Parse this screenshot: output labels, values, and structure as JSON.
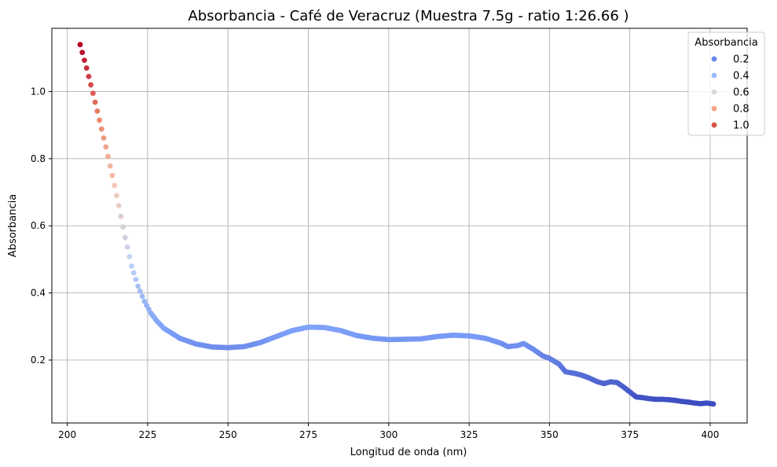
{
  "chart_data": {
    "type": "scatter",
    "title": "Absorbancia - Café de Veracruz (Muestra 7.5g - ratio 1:26.66 )",
    "xlabel": "Longitud de onda (nm)",
    "ylabel": "Absorbancia",
    "xlim": [
      195.2,
      411.5
    ],
    "ylim": [
      0.0125,
      1.1885
    ],
    "x_ticks": [
      200,
      225,
      250,
      275,
      300,
      325,
      350,
      375,
      400
    ],
    "x_tick_labels": [
      "200",
      "225",
      "250",
      "275",
      "300",
      "325",
      "350",
      "375",
      "400"
    ],
    "y_ticks": [
      0.2,
      0.4,
      0.6,
      0.8,
      1.0
    ],
    "y_tick_labels": [
      "0.2",
      "0.4",
      "0.6",
      "0.8",
      "1.0"
    ],
    "grid": true,
    "colormap": "coolwarm",
    "legend": {
      "title": "Absorbancia",
      "position": "top-right",
      "entries": [
        {
          "label": "0.2",
          "color": "#6788ee"
        },
        {
          "label": "0.4",
          "color": "#9abbff"
        },
        {
          "label": "0.6",
          "color": "#dadada"
        },
        {
          "label": "0.8",
          "color": "#f6a283"
        },
        {
          "label": "1.0",
          "color": "#d65244"
        }
      ]
    },
    "x": [
      204,
      206,
      208,
      210,
      212,
      214,
      216,
      218,
      220,
      222,
      224,
      226,
      228,
      230,
      235,
      240,
      245,
      250,
      255,
      260,
      265,
      270,
      275,
      280,
      285,
      290,
      295,
      300,
      305,
      310,
      315,
      320,
      325,
      330,
      335,
      337,
      340,
      342,
      345,
      348,
      350,
      353,
      355,
      358,
      360,
      362,
      365,
      367,
      369,
      371,
      373,
      375,
      377,
      379,
      381,
      383,
      385,
      387,
      389,
      391,
      393,
      395,
      397,
      399,
      401
    ],
    "y": [
      1.14,
      1.07,
      0.995,
      0.915,
      0.835,
      0.75,
      0.66,
      0.565,
      0.48,
      0.42,
      0.375,
      0.34,
      0.315,
      0.295,
      0.265,
      0.248,
      0.239,
      0.237,
      0.24,
      0.252,
      0.27,
      0.288,
      0.298,
      0.297,
      0.288,
      0.273,
      0.265,
      0.261,
      0.262,
      0.263,
      0.27,
      0.274,
      0.272,
      0.265,
      0.25,
      0.24,
      0.243,
      0.249,
      0.232,
      0.212,
      0.205,
      0.188,
      0.165,
      0.16,
      0.155,
      0.148,
      0.135,
      0.13,
      0.135,
      0.133,
      0.12,
      0.105,
      0.09,
      0.088,
      0.085,
      0.083,
      0.083,
      0.082,
      0.08,
      0.077,
      0.075,
      0.072,
      0.07,
      0.072,
      0.069
    ]
  }
}
